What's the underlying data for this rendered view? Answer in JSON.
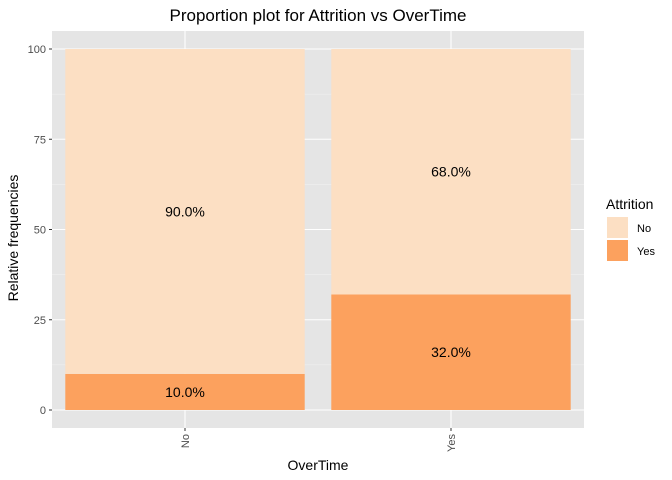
{
  "chart_data": {
    "type": "bar",
    "stacked": true,
    "title": "Proportion plot for Attrition vs OverTime",
    "xlabel": "OverTime",
    "ylabel": "Relative frequencies",
    "categories": [
      "No",
      "Yes"
    ],
    "ylim": [
      0,
      100
    ],
    "yticks": [
      0,
      25,
      50,
      75,
      100
    ],
    "grid": true,
    "legend": {
      "title": "Attrition",
      "position": "right"
    },
    "series": [
      {
        "name": "Yes",
        "values": [
          10.0,
          32.0
        ],
        "labels": [
          "10.0%",
          "32.0%"
        ],
        "color": "#FCA15E"
      },
      {
        "name": "No",
        "values": [
          90.0,
          68.0
        ],
        "labels": [
          "90.0%",
          "68.0%"
        ],
        "color": "#FCDFC3"
      }
    ],
    "colors": {
      "panel_background": "#E5E5E5",
      "grid_major": "#FFFFFF",
      "grid_minor": "#F2F2F2"
    }
  }
}
